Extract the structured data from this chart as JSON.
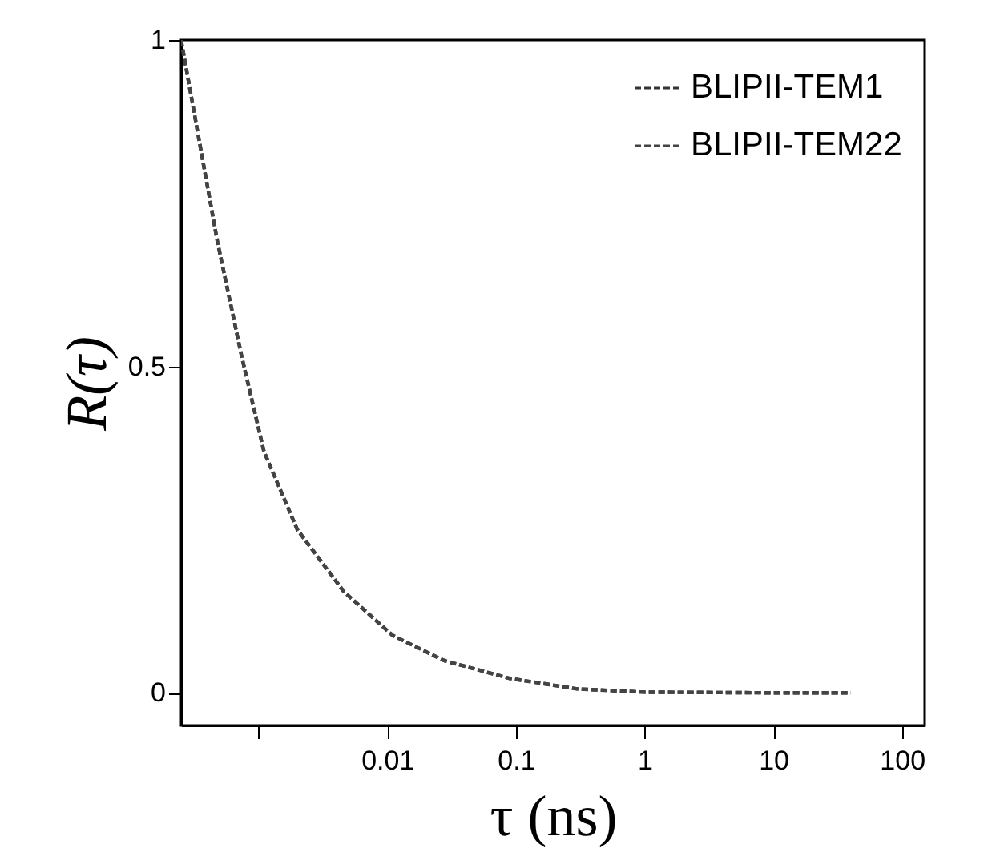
{
  "chart_data": {
    "type": "line",
    "xlabel": "τ (ns)",
    "ylabel": "R(τ)",
    "log": "x",
    "xlim": [
      0.00025,
      150
    ],
    "ylim": [
      -0.05,
      1
    ],
    "xticks": [
      {
        "value": 0.001,
        "label": null
      },
      0.01,
      0.1,
      1,
      10,
      100
    ],
    "yticks": [
      0,
      0.5,
      1
    ],
    "grid": false,
    "legend": "top right",
    "line_style": "dashed",
    "marker": "none",
    "x": [
      0.00025,
      0.00035,
      0.00048,
      0.00074,
      0.0011,
      0.002,
      0.0046,
      0.011,
      0.028,
      0.09,
      0.3,
      1,
      10,
      40
    ],
    "series": [
      {
        "name": "BLIPII-TEM1",
        "color": "#333333",
        "values": [
          1,
          0.84,
          0.69,
          0.515,
          0.37,
          0.25,
          0.155,
          0.088,
          0.049,
          0.022,
          0.006,
          0.001,
          0,
          0
        ]
      },
      {
        "name": "BLIPII-TEM22",
        "color": "#444444",
        "values": [
          1,
          0.84,
          0.69,
          0.515,
          0.37,
          0.25,
          0.155,
          0.088,
          0.049,
          0.022,
          0.006,
          0.001,
          0,
          0
        ]
      }
    ]
  }
}
